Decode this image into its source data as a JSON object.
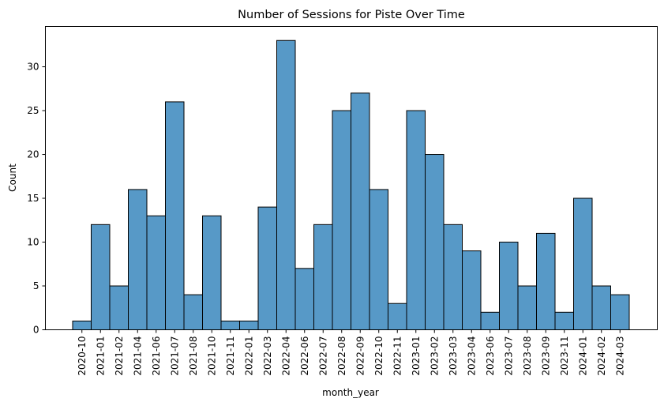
{
  "chart_data": {
    "type": "bar",
    "title": "Number of Sessions for Piste Over Time",
    "xlabel": "month_year",
    "ylabel": "Count",
    "ylim": [
      0,
      34.6
    ],
    "yticks": [
      0,
      5,
      10,
      15,
      20,
      25,
      30
    ],
    "grid": false,
    "bar_color": "#5799c7",
    "edge_color": "#000000",
    "categories": [
      "2020-10",
      "2021-01",
      "2021-02",
      "2021-04",
      "2021-06",
      "2021-07",
      "2021-08",
      "2021-10",
      "2021-11",
      "2022-01",
      "2022-03",
      "2022-04",
      "2022-06",
      "2022-07",
      "2022-08",
      "2022-09",
      "2022-10",
      "2022-11",
      "2023-01",
      "2023-02",
      "2023-03",
      "2023-04",
      "2023-06",
      "2023-07",
      "2023-08",
      "2023-09",
      "2023-11",
      "2024-01",
      "2024-02",
      "2024-03"
    ],
    "values": [
      1,
      12,
      5,
      16,
      13,
      26,
      4,
      13,
      1,
      1,
      14,
      33,
      7,
      12,
      25,
      27,
      16,
      3,
      25,
      20,
      12,
      9,
      2,
      10,
      5,
      11,
      2,
      15,
      5,
      4
    ]
  }
}
